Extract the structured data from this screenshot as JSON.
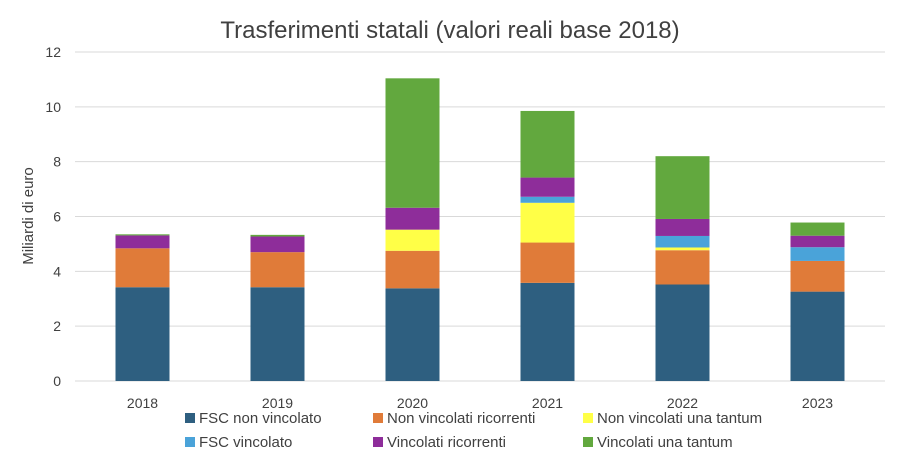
{
  "chart_data": {
    "type": "bar",
    "stacked": true,
    "title": "Trasferimenti statali (valori reali base 2018)",
    "ylabel": "Miliardi di euro",
    "xlabel": "",
    "ylim": [
      0,
      12
    ],
    "yticks": [
      0,
      2,
      4,
      6,
      8,
      10,
      12
    ],
    "grid": true,
    "legend_position": "bottom",
    "categories": [
      "2018",
      "2019",
      "2020",
      "2021",
      "2022",
      "2023"
    ],
    "series": [
      {
        "name": "FSC non vincolato",
        "color": "#2e5f80",
        "values": [
          3.42,
          3.42,
          3.38,
          3.58,
          3.52,
          3.26
        ]
      },
      {
        "name": "Non vincolati  ricorrenti",
        "color": "#e07b39",
        "values": [
          1.42,
          1.28,
          1.37,
          1.47,
          1.25,
          1.12
        ]
      },
      {
        "name": "Non vincolati una tantum",
        "color": "#ffff47",
        "values": [
          0.0,
          0.0,
          0.77,
          1.45,
          0.1,
          0.0
        ]
      },
      {
        "name": "FSC vincolato",
        "color": "#4aa3d9",
        "values": [
          0.0,
          0.0,
          0.0,
          0.22,
          0.42,
          0.5
        ]
      },
      {
        "name": "Vincolati ricorrenti",
        "color": "#8e2d9a",
        "values": [
          0.47,
          0.57,
          0.8,
          0.7,
          0.62,
          0.42
        ]
      },
      {
        "name": "Vincolati una tantum",
        "color": "#62a83e",
        "values": [
          0.04,
          0.06,
          4.72,
          2.43,
          2.29,
          0.48
        ]
      }
    ]
  }
}
